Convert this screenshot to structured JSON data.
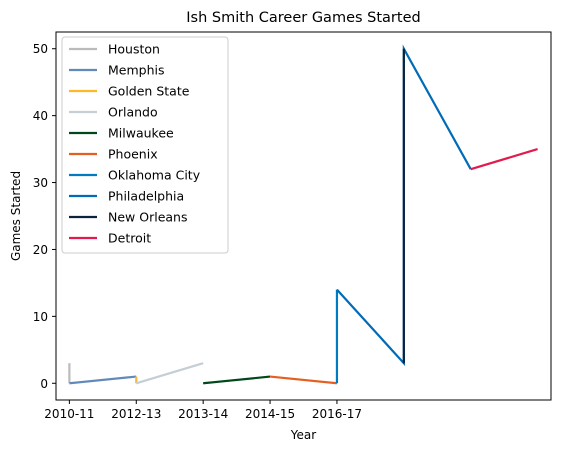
{
  "chart_data": {
    "type": "line",
    "title": "Ish Smith Career Games Started",
    "xlabel": "Year",
    "ylabel": "Games Started",
    "x_tick_labels": [
      "2010-11",
      "2012-13",
      "2013-14",
      "2014-15",
      "2016-17"
    ],
    "x_tick_positions": [
      0,
      2,
      4,
      6,
      8
    ],
    "xlim": [
      -0.4,
      14.4
    ],
    "y_ticks": [
      0,
      10,
      20,
      30,
      40,
      50
    ],
    "ylim": [
      -2.5,
      52.5
    ],
    "grid": false,
    "legend_position": "upper-left",
    "series": [
      {
        "name": "Houston",
        "color": "#bbbbbb",
        "points": [
          [
            0,
            3
          ],
          [
            0,
            0
          ]
        ]
      },
      {
        "name": "Memphis",
        "color": "#6189b9",
        "points": [
          [
            0,
            0
          ],
          [
            2,
            1
          ]
        ]
      },
      {
        "name": "Golden State",
        "color": "#fdb927",
        "points": [
          [
            2,
            1
          ],
          [
            2,
            0
          ]
        ]
      },
      {
        "name": "Orlando",
        "color": "#c4ced4",
        "points": [
          [
            2,
            0
          ],
          [
            4,
            3
          ]
        ]
      },
      {
        "name": "Milwaukee",
        "color": "#00471b",
        "points": [
          [
            4,
            0
          ],
          [
            6,
            1
          ]
        ]
      },
      {
        "name": "Phoenix",
        "color": "#e56020",
        "points": [
          [
            6,
            1
          ],
          [
            8,
            0
          ]
        ]
      },
      {
        "name": "Oklahoma City",
        "color": "#007ac1",
        "points": [
          [
            8,
            0
          ],
          [
            8,
            14
          ]
        ]
      },
      {
        "name": "Philadelphia",
        "color": "#006bb6",
        "points": [
          [
            8,
            14
          ],
          [
            10,
            3
          ],
          [
            10,
            50
          ],
          [
            12,
            32
          ]
        ]
      },
      {
        "name": "New Orleans",
        "color": "#0c2340",
        "points": [
          [
            10,
            3
          ],
          [
            10,
            50
          ]
        ]
      },
      {
        "name": "Detroit",
        "color": "#e31b4d",
        "points": [
          [
            12,
            32
          ],
          [
            14,
            35
          ]
        ]
      }
    ]
  }
}
